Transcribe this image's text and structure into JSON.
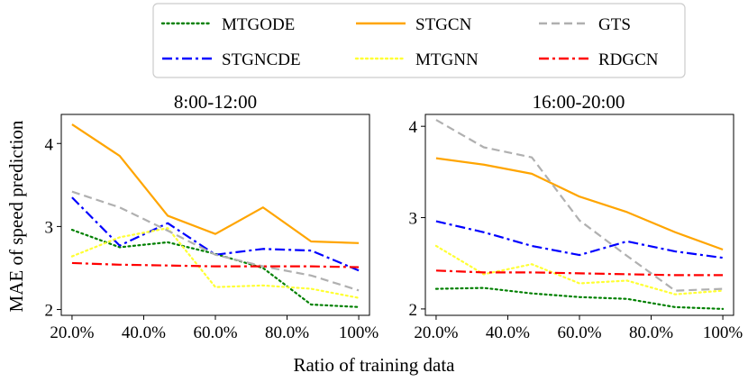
{
  "chart_data": [
    {
      "type": "line",
      "title": "8:00-12:00",
      "xlabel": "Ratio of training data",
      "ylabel": "MAE of speed prediction",
      "x": [
        20,
        33.3,
        46.7,
        60,
        73.3,
        86.7,
        100
      ],
      "xticks": [
        20,
        40,
        60,
        80,
        100
      ],
      "xtick_labels": [
        "20.0%",
        "40.0%",
        "60.0%",
        "80.0%",
        "100%"
      ],
      "xlim": [
        17,
        103
      ],
      "yticks": [
        2,
        3,
        4
      ],
      "ytick_labels": [
        "2",
        "3",
        "4"
      ],
      "ylim": [
        1.93,
        4.35
      ],
      "series": [
        {
          "name": "MTGODE",
          "values": [
            2.96,
            2.75,
            2.81,
            2.67,
            2.5,
            2.06,
            2.03
          ]
        },
        {
          "name": "STGNCDE",
          "values": [
            3.35,
            2.77,
            3.04,
            2.66,
            2.73,
            2.71,
            2.47
          ]
        },
        {
          "name": "STGCN",
          "values": [
            4.23,
            3.85,
            3.13,
            2.91,
            3.23,
            2.82,
            2.8
          ]
        },
        {
          "name": "MTGNN",
          "values": [
            2.64,
            2.87,
            2.98,
            2.27,
            2.29,
            2.25,
            2.14
          ]
        },
        {
          "name": "GTS",
          "values": [
            3.42,
            3.23,
            2.95,
            2.66,
            2.52,
            2.41,
            2.23
          ]
        },
        {
          "name": "RDGCN",
          "values": [
            2.56,
            2.54,
            2.53,
            2.52,
            2.52,
            2.52,
            2.51
          ]
        }
      ]
    },
    {
      "type": "line",
      "title": "16:00-20:00",
      "xlabel": "Ratio of training data",
      "ylabel": "MAE of speed prediction",
      "x": [
        20,
        33.3,
        46.7,
        60,
        73.3,
        86.7,
        100
      ],
      "xticks": [
        20,
        40,
        60,
        80,
        100
      ],
      "xtick_labels": [
        "20.0%",
        "40.0%",
        "60.0%",
        "80.0%",
        "100%"
      ],
      "xlim": [
        17,
        103
      ],
      "yticks": [
        2,
        3,
        4
      ],
      "ytick_labels": [
        "2",
        "3",
        "4"
      ],
      "ylim": [
        1.93,
        4.13
      ],
      "series": [
        {
          "name": "MTGODE",
          "values": [
            2.22,
            2.23,
            2.17,
            2.13,
            2.11,
            2.02,
            2.0
          ]
        },
        {
          "name": "STGNCDE",
          "values": [
            2.96,
            2.84,
            2.69,
            2.59,
            2.74,
            2.63,
            2.56
          ]
        },
        {
          "name": "STGCN",
          "values": [
            3.65,
            3.58,
            3.48,
            3.23,
            3.06,
            2.84,
            2.65
          ]
        },
        {
          "name": "MTGNN",
          "values": [
            2.69,
            2.38,
            2.49,
            2.28,
            2.31,
            2.16,
            2.2
          ]
        },
        {
          "name": "GTS",
          "values": [
            4.07,
            3.77,
            3.66,
            2.97,
            2.58,
            2.2,
            2.22
          ]
        },
        {
          "name": "RDGCN",
          "values": [
            2.42,
            2.4,
            2.4,
            2.39,
            2.38,
            2.37,
            2.37
          ]
        }
      ]
    }
  ],
  "legend": [
    {
      "name": "MTGODE",
      "color": "#008000",
      "dash": "dotted"
    },
    {
      "name": "STGCN",
      "color": "#ffa500",
      "dash": "solid"
    },
    {
      "name": "GTS",
      "color": "#b0b0b0",
      "dash": "dashed"
    },
    {
      "name": "STGNCDE",
      "color": "#0000ff",
      "dash": "dashdot"
    },
    {
      "name": "MTGNN",
      "color": "#ffff33",
      "dash": "dotted"
    },
    {
      "name": "RDGCN",
      "color": "#ff0000",
      "dash": "dashdot"
    }
  ],
  "shared_xlabel": "Ratio of training data",
  "shared_ylabel": "MAE of speed prediction"
}
